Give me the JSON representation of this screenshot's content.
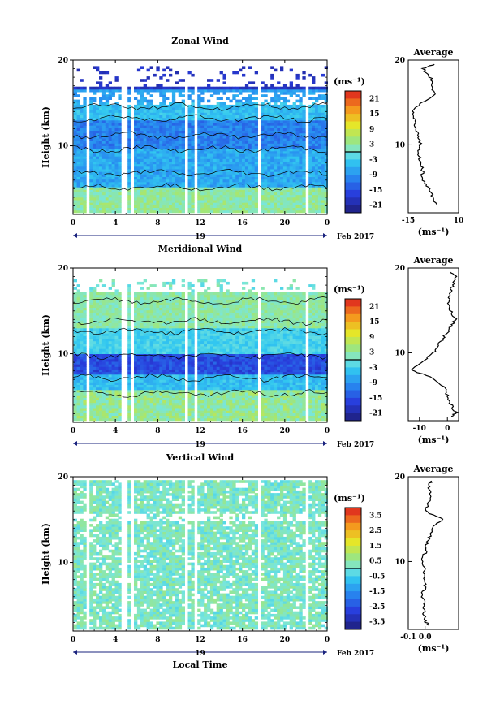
{
  "figure": {
    "x_ticks": [
      "0",
      "4",
      "8",
      "12",
      "16",
      "20",
      "0"
    ],
    "date_day": "19",
    "date_label": "Feb 2017",
    "xlabel": "Local Time",
    "average_title": "Average",
    "unit": "(ms⁻¹)"
  },
  "chart_data": [
    {
      "type": "heatmap",
      "title": "Zonal Wind",
      "ylabel": "Height (km)",
      "xlabel": "Local Time",
      "xlim": [
        0,
        24
      ],
      "ylim": [
        2,
        20
      ],
      "y_ticks": [
        "20",
        "10"
      ],
      "colorbar": {
        "unit": "(ms⁻¹)",
        "ticks": [
          "21",
          "15",
          "9",
          "3",
          "-3",
          "-9",
          "-15",
          "-21"
        ],
        "range": [
          -24,
          24
        ]
      },
      "profile": {
        "title": "Average",
        "xlim": [
          -15,
          10
        ],
        "x_ticks": [
          "-15",
          "10"
        ],
        "xlabel": "(ms⁻¹)",
        "heights": [
          3,
          4,
          5,
          6,
          7,
          8,
          9,
          10,
          11,
          12,
          13,
          14,
          15,
          16,
          17,
          18,
          19,
          19.5
        ],
        "values": [
          -1,
          -3,
          -5,
          -8,
          -8,
          -9,
          -10,
          -9,
          -10,
          -11,
          -12,
          -13,
          -8,
          -2,
          -3,
          -4,
          -8,
          -2
        ]
      }
    },
    {
      "type": "heatmap",
      "title": "Meridional Wind",
      "ylabel": "Height (km)",
      "xlabel": "Local Time",
      "xlim": [
        0,
        24
      ],
      "ylim": [
        2,
        20
      ],
      "y_ticks": [
        "20",
        "10"
      ],
      "colorbar": {
        "unit": "(ms⁻¹)",
        "ticks": [
          "21",
          "15",
          "9",
          "3",
          "-3",
          "-9",
          "-15",
          "-21"
        ],
        "range": [
          -24,
          24
        ]
      },
      "profile": {
        "title": "Average",
        "xlim": [
          -14,
          4
        ],
        "x_ticks": [
          "-10",
          "0"
        ],
        "xlabel": "(ms⁻¹)",
        "heights": [
          2.5,
          3,
          4,
          5,
          6,
          7,
          8,
          9,
          10,
          11,
          12,
          13,
          14,
          15,
          16,
          17,
          18,
          19,
          19.5
        ],
        "values": [
          2,
          3,
          1,
          0,
          -1,
          -5,
          -13,
          -9,
          -5,
          -3,
          -1,
          1,
          3,
          1,
          0,
          1,
          2,
          3,
          1
        ]
      }
    },
    {
      "type": "heatmap",
      "title": "Vertical Wind",
      "ylabel": "Height (km)",
      "xlabel": "Local Time",
      "xlim": [
        0,
        24
      ],
      "ylim": [
        2,
        20
      ],
      "y_ticks": [
        "20",
        "10"
      ],
      "colorbar": {
        "unit": "(ms⁻¹)",
        "ticks": [
          "3.5",
          "2.5",
          "1.5",
          "0.5",
          "-0.5",
          "-1.5",
          "-2.5",
          "-3.5"
        ],
        "range": [
          -4,
          4
        ]
      },
      "profile": {
        "title": "Average",
        "xlim": [
          -0.1,
          0.2
        ],
        "x_ticks": [
          "-0.1",
          "0.0"
        ],
        "xlabel": "(ms⁻¹)",
        "heights": [
          2.5,
          3,
          4,
          5,
          6,
          7,
          8,
          9,
          10,
          11,
          12,
          13,
          14,
          15,
          16,
          17,
          18,
          19,
          19.5
        ],
        "values": [
          0.02,
          0.0,
          -0.01,
          0.0,
          -0.02,
          0.0,
          -0.01,
          0.0,
          -0.02,
          0.0,
          0.01,
          0.03,
          0.05,
          0.1,
          0.0,
          0.02,
          0.03,
          0.02,
          0.04
        ]
      }
    }
  ]
}
